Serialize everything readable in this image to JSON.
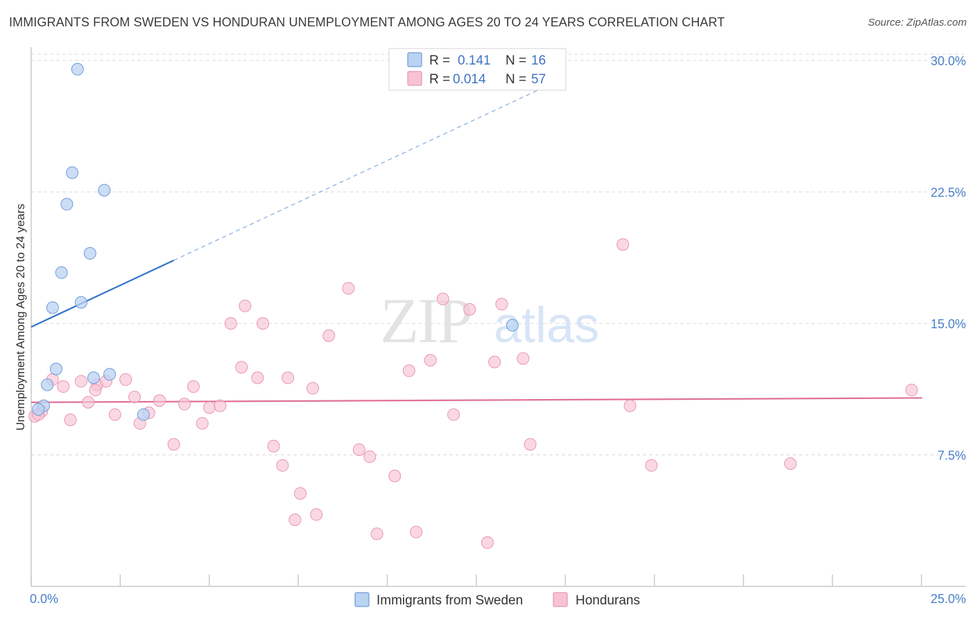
{
  "title": "IMMIGRANTS FROM SWEDEN VS HONDURAN UNEMPLOYMENT AMONG AGES 20 TO 24 YEARS CORRELATION CHART",
  "source": "Source: ZipAtlas.com",
  "watermark": {
    "zip": "ZIP",
    "atlas": "atlas"
  },
  "colors": {
    "sweden_fill": "#b9d3f3",
    "sweden_stroke": "#6f9ad6",
    "sweden_line": "#2f72c8",
    "honduras_fill": "#f7c3d4",
    "honduras_stroke": "#e994b2",
    "honduras_line": "#e0709a",
    "grid": "#d9d9d9",
    "axis_label": "#4a7fc8"
  },
  "legend": {
    "rows": [
      {
        "r_label": "R =",
        "r_value": "0.141",
        "n_label": "N =",
        "n_value": "16"
      },
      {
        "r_label": "R =",
        "r_value": "0.014",
        "n_label": "N =",
        "n_value": "57"
      }
    ]
  },
  "bottom_legend": {
    "items": [
      "Immigrants from Sweden",
      "Hondurans"
    ]
  },
  "chart_data": {
    "type": "scatter",
    "title": "IMMIGRANTS FROM SWEDEN VS HONDURAN UNEMPLOYMENT AMONG AGES 20 TO 24 YEARS CORRELATION CHART",
    "xlabel": "",
    "ylabel": "Unemployment Among Ages 20 to 24 years",
    "xlim": [
      0,
      25
    ],
    "ylim": [
      0,
      30.6
    ],
    "x_tick_labels": [
      "0.0%",
      "25.0%"
    ],
    "y_ticks": [
      7.5,
      15.0,
      22.5,
      30.0
    ],
    "y_tick_labels": [
      "7.5%",
      "15.0%",
      "22.5%",
      "30.0%"
    ],
    "series": [
      {
        "name": "Immigrants from Sweden",
        "r": 0.141,
        "n": 16,
        "trend": {
          "x0": 0,
          "y0": 14.8,
          "x1": 4.0,
          "y1": 18.6,
          "dashed_to_x": 15.0
        },
        "points": [
          {
            "x": 1.3,
            "y": 29.5
          },
          {
            "x": 1.15,
            "y": 23.6
          },
          {
            "x": 2.05,
            "y": 22.6
          },
          {
            "x": 1.0,
            "y": 21.8
          },
          {
            "x": 1.65,
            "y": 19.0
          },
          {
            "x": 0.85,
            "y": 17.9
          },
          {
            "x": 0.6,
            "y": 15.9
          },
          {
            "x": 1.4,
            "y": 16.2
          },
          {
            "x": 0.7,
            "y": 12.4
          },
          {
            "x": 2.2,
            "y": 12.1
          },
          {
            "x": 0.45,
            "y": 11.5
          },
          {
            "x": 1.75,
            "y": 11.9
          },
          {
            "x": 0.35,
            "y": 10.3
          },
          {
            "x": 0.2,
            "y": 10.1
          },
          {
            "x": 3.15,
            "y": 9.8
          },
          {
            "x": 13.5,
            "y": 14.9
          }
        ]
      },
      {
        "name": "Hondurans",
        "r": 0.014,
        "n": 57,
        "trend": {
          "x0": 0,
          "y0": 10.5,
          "x1": 25.0,
          "y1": 10.75
        },
        "points": [
          {
            "x": 0.1,
            "y": 9.7
          },
          {
            "x": 0.3,
            "y": 10.0
          },
          {
            "x": 0.6,
            "y": 11.8
          },
          {
            "x": 0.9,
            "y": 11.4
          },
          {
            "x": 1.1,
            "y": 9.5
          },
          {
            "x": 1.4,
            "y": 11.7
          },
          {
            "x": 1.6,
            "y": 10.5
          },
          {
            "x": 1.85,
            "y": 11.5
          },
          {
            "x": 2.1,
            "y": 11.7
          },
          {
            "x": 2.35,
            "y": 9.8
          },
          {
            "x": 2.65,
            "y": 11.8
          },
          {
            "x": 2.9,
            "y": 10.8
          },
          {
            "x": 3.05,
            "y": 9.3
          },
          {
            "x": 3.3,
            "y": 9.9
          },
          {
            "x": 3.6,
            "y": 10.6
          },
          {
            "x": 4.0,
            "y": 8.1
          },
          {
            "x": 4.3,
            "y": 10.4
          },
          {
            "x": 4.55,
            "y": 11.4
          },
          {
            "x": 4.8,
            "y": 9.3
          },
          {
            "x": 5.0,
            "y": 10.2
          },
          {
            "x": 5.3,
            "y": 10.3
          },
          {
            "x": 5.6,
            "y": 15.0
          },
          {
            "x": 5.9,
            "y": 12.5
          },
          {
            "x": 6.0,
            "y": 16.0
          },
          {
            "x": 6.35,
            "y": 11.9
          },
          {
            "x": 6.5,
            "y": 15.0
          },
          {
            "x": 6.8,
            "y": 8.0
          },
          {
            "x": 7.05,
            "y": 6.9
          },
          {
            "x": 7.2,
            "y": 11.9
          },
          {
            "x": 7.55,
            "y": 5.3
          },
          {
            "x": 7.4,
            "y": 3.8
          },
          {
            "x": 7.9,
            "y": 11.3
          },
          {
            "x": 8.0,
            "y": 4.1
          },
          {
            "x": 8.35,
            "y": 14.3
          },
          {
            "x": 8.9,
            "y": 17.0
          },
          {
            "x": 9.2,
            "y": 7.8
          },
          {
            "x": 9.5,
            "y": 7.4
          },
          {
            "x": 9.7,
            "y": 3.0
          },
          {
            "x": 10.2,
            "y": 6.3
          },
          {
            "x": 10.6,
            "y": 12.3
          },
          {
            "x": 10.8,
            "y": 3.1
          },
          {
            "x": 11.2,
            "y": 12.9
          },
          {
            "x": 11.55,
            "y": 16.4
          },
          {
            "x": 11.85,
            "y": 9.8
          },
          {
            "x": 12.3,
            "y": 15.8
          },
          {
            "x": 12.8,
            "y": 2.5
          },
          {
            "x": 13.0,
            "y": 12.8
          },
          {
            "x": 13.2,
            "y": 16.1
          },
          {
            "x": 13.8,
            "y": 13.0
          },
          {
            "x": 14.0,
            "y": 8.1
          },
          {
            "x": 16.6,
            "y": 19.5
          },
          {
            "x": 16.8,
            "y": 10.3
          },
          {
            "x": 17.4,
            "y": 6.9
          },
          {
            "x": 21.3,
            "y": 7.0
          },
          {
            "x": 24.7,
            "y": 11.2
          },
          {
            "x": 0.2,
            "y": 9.8
          },
          {
            "x": 1.8,
            "y": 11.2
          }
        ]
      }
    ]
  }
}
